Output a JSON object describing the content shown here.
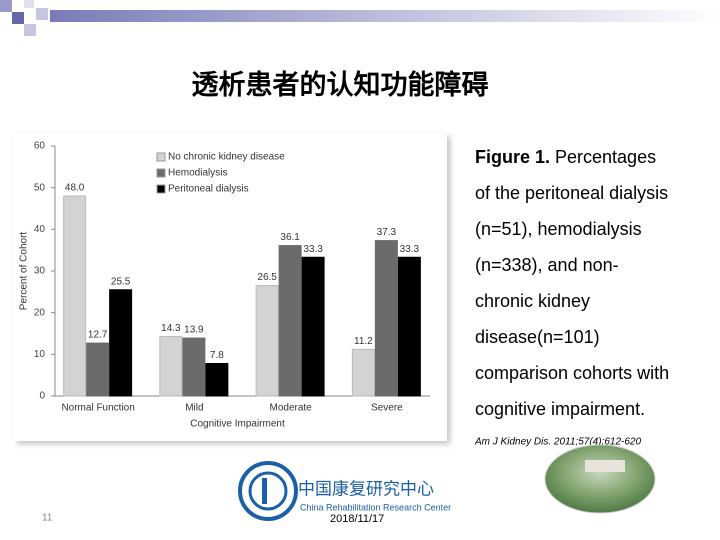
{
  "chart_data": {
    "type": "bar",
    "y_label": "Percent of Cohort",
    "x_label": "Cognitive Impairment",
    "categories": [
      "Normal Function",
      "Mild",
      "Moderate",
      "Severe"
    ],
    "series": [
      {
        "name": "No chronic kidney disease",
        "color": "#d3d3d3",
        "values": [
          48.0,
          14.3,
          26.5,
          11.2
        ],
        "value_labels": [
          "48.0",
          "14.3",
          "26.5",
          "11.2"
        ]
      },
      {
        "name": "Hemodialysis",
        "color": "#6b6b6b",
        "values": [
          12.7,
          13.9,
          36.1,
          37.3
        ],
        "value_labels": [
          "12.7",
          "13.9",
          "36.1",
          "37.3"
        ]
      },
      {
        "name": "Peritoneal dialysis",
        "color": "#000000",
        "values": [
          25.5,
          7.8,
          33.3,
          33.3
        ],
        "value_labels": [
          "25.5",
          "7.8",
          "33.3",
          "33.3"
        ]
      }
    ],
    "ylim": [
      0,
      60
    ],
    "yticks": [
      0,
      10,
      20,
      30,
      40,
      50,
      60
    ],
    "grid": false,
    "legend": "top-left"
  },
  "slide": {
    "title": "透析患者的认知功能障碍",
    "caption_label": "Figure 1.",
    "caption_lines": [
      " Percentages",
      "of the peritoneal dialysis",
      "(n=51), hemodialysis",
      "(n=338), and non-",
      "chronic kidney",
      "disease(n=101)",
      "comparison cohorts with",
      "cognitive impairment."
    ],
    "citation": "Am J Kidney Dis. 2011;57(4):612-620",
    "logo_cn": "中国康复研究中心",
    "logo_en": "China Rehabilitation Research Center",
    "date": "2018/11/17",
    "page_number": "11"
  }
}
